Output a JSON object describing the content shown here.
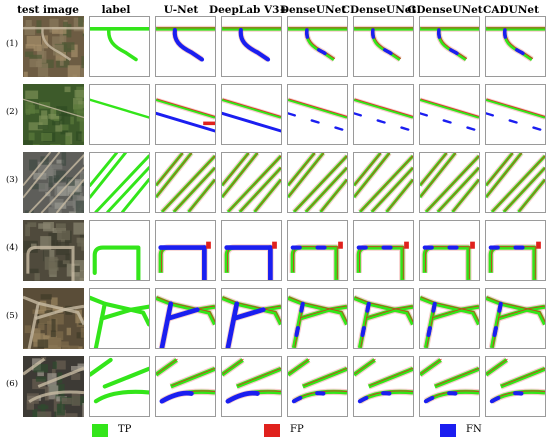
{
  "headers": [
    "test image",
    "label",
    "U-Net",
    "DeepLab V3+",
    "DenseUNet",
    "CDenseUNet",
    "GDenseUNet",
    "CADUNet"
  ],
  "rows": [
    "(1)",
    "(2)",
    "(3)",
    "(4)",
    "(5)",
    "(6)"
  ],
  "legend": [
    {
      "key": "tp",
      "label": "TP",
      "color": "#33e51a"
    },
    {
      "key": "fp",
      "label": "FP",
      "color": "#e0211d"
    },
    {
      "key": "fn",
      "label": "FN",
      "color": "#1b1ef0"
    }
  ],
  "colors": {
    "tp": "#33e51a",
    "fp": "#e0211d",
    "fn": "#1b1ef0",
    "fp_soft": "#f3b8b6"
  }
}
